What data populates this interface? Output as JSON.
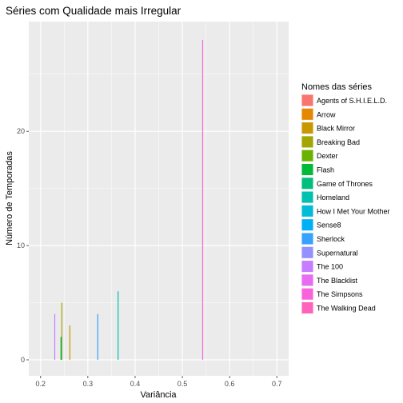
{
  "chart_data": {
    "type": "bar",
    "title": "Séries com Qualidade mais Irregular",
    "xlabel": "Variância",
    "ylabel": "Número de Temporadas",
    "xlim": [
      0.175,
      0.725
    ],
    "ylim": [
      -1.4,
      29.6
    ],
    "xticks": [
      "0.2",
      "0.3",
      "0.4",
      "0.5",
      "0.6",
      "0.7"
    ],
    "xtick_values": [
      0.2,
      0.3,
      0.4,
      0.5,
      0.6,
      0.7
    ],
    "yticks": [
      "0",
      "10",
      "20"
    ],
    "ytick_values": [
      0,
      10,
      20
    ],
    "grid": true,
    "panel_background": "#ebebeb",
    "legend_title": "Nomes das séries",
    "legend_position": "right",
    "series": [
      {
        "name": "Agents of S.H.I.E.L.D.",
        "color": "#F8766D",
        "x": null,
        "y": null
      },
      {
        "name": "Arrow",
        "color": "#E58700",
        "x": null,
        "y": null
      },
      {
        "name": "Black Mirror",
        "color": "#C99800",
        "x": 0.262,
        "y": 3
      },
      {
        "name": "Breaking Bad",
        "color": "#A3A500",
        "x": 0.245,
        "y": 5
      },
      {
        "name": "Dexter",
        "color": "#6BB100",
        "x": 0.243,
        "y": 2
      },
      {
        "name": "Flash",
        "color": "#00BA38",
        "x": null,
        "y": null
      },
      {
        "name": "Game of Thrones",
        "color": "#00BF7D",
        "x": 0.244,
        "y": 2
      },
      {
        "name": "Homeland",
        "color": "#00C0AF",
        "x": 0.364,
        "y": 6
      },
      {
        "name": "How I Met Your Mother",
        "color": "#00BCD8",
        "x": null,
        "y": null
      },
      {
        "name": "Sense8",
        "color": "#00B0F6",
        "x": null,
        "y": null
      },
      {
        "name": "Sherlock",
        "color": "#35A2FF",
        "x": 0.321,
        "y": 4
      },
      {
        "name": "Supernatural",
        "color": "#9590FF",
        "x": null,
        "y": null
      },
      {
        "name": "The 100",
        "color": "#C77CFF",
        "x": 0.23,
        "y": 4
      },
      {
        "name": "The Blacklist",
        "color": "#E76BF3",
        "x": null,
        "y": null
      },
      {
        "name": "The Simpsons",
        "color": "#FA62DB",
        "x": 0.543,
        "y": 28
      },
      {
        "name": "The Walking Dead",
        "color": "#FF62BC",
        "x": null,
        "y": null
      }
    ]
  }
}
